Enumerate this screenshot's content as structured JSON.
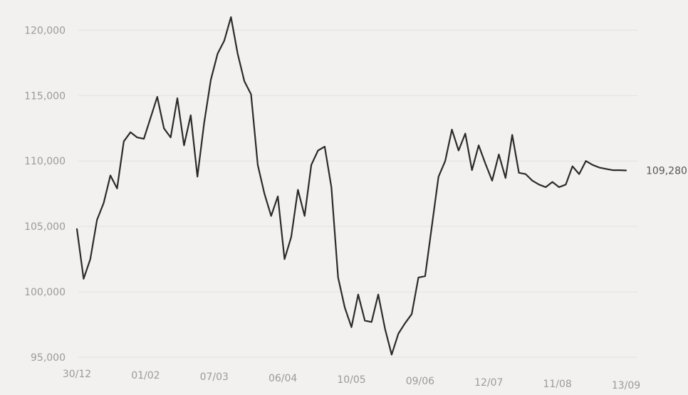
{
  "chart_data": {
    "type": "line",
    "title": "",
    "xlabel": "",
    "ylabel": "",
    "grid": true,
    "ylim": [
      95000,
      121000
    ],
    "y_ticks": [
      "120,000",
      "115,000",
      "110,000",
      "105,000",
      "100,000",
      "95,000"
    ],
    "y_tick_values": [
      120000,
      115000,
      110000,
      105000,
      100000,
      95000
    ],
    "x_ticks": [
      "30/12",
      "01/02",
      "07/03",
      "06/04",
      "10/05",
      "09/06",
      "12/07",
      "11/08",
      "13/09"
    ],
    "end_label": "109,280",
    "series": [
      {
        "x_index": [
          0,
          0.1,
          0.2,
          0.3,
          0.4,
          0.5,
          0.6,
          0.7,
          0.8,
          0.9,
          1.0,
          1.1,
          1.2,
          1.3,
          1.4,
          1.5,
          1.6,
          1.7,
          1.8,
          1.9,
          2.0,
          2.1,
          2.2,
          2.3,
          2.4,
          2.5,
          2.6,
          2.7,
          2.8,
          2.9,
          3.0,
          3.1,
          3.2,
          3.3,
          3.4,
          3.5,
          3.6,
          3.7,
          3.8,
          3.9,
          4.0,
          4.1,
          4.2,
          4.3,
          4.4,
          4.5,
          4.6,
          4.7,
          4.8,
          4.9,
          5.0,
          5.1,
          5.2,
          5.3,
          5.4,
          5.5,
          5.6,
          5.7,
          5.8,
          5.9,
          6.0,
          6.1,
          6.2,
          6.3,
          6.4,
          6.5,
          6.6,
          6.7,
          6.8,
          6.9,
          7.0,
          7.1,
          7.2,
          7.3,
          7.4,
          7.5,
          7.6,
          7.7,
          7.8,
          7.9,
          8.0,
          8.1,
          8.2
        ],
        "values": [
          104800,
          101000,
          102500,
          105500,
          106800,
          108900,
          107900,
          111500,
          112200,
          111800,
          111700,
          113300,
          114900,
          112500,
          111800,
          114800,
          111200,
          113500,
          108800,
          112900,
          116200,
          118200,
          119200,
          121000,
          118200,
          116100,
          115100,
          109700,
          107500,
          105800,
          107300,
          102500,
          104200,
          107800,
          105800,
          109700,
          110800,
          111100,
          108000,
          101100,
          98800,
          97300,
          99800,
          97800,
          97700,
          99800,
          97200,
          95200,
          96800,
          97600,
          98300,
          101100,
          101200,
          105000,
          108800,
          110000,
          112400,
          110800,
          112100,
          109300,
          111200,
          109800,
          108500,
          110500,
          108700,
          112000,
          109100,
          109000,
          108500,
          108200,
          108000,
          108400,
          108000,
          108200,
          109600,
          109000,
          110000,
          109700,
          109500,
          109400,
          109300,
          109300,
          109280
        ]
      }
    ]
  }
}
